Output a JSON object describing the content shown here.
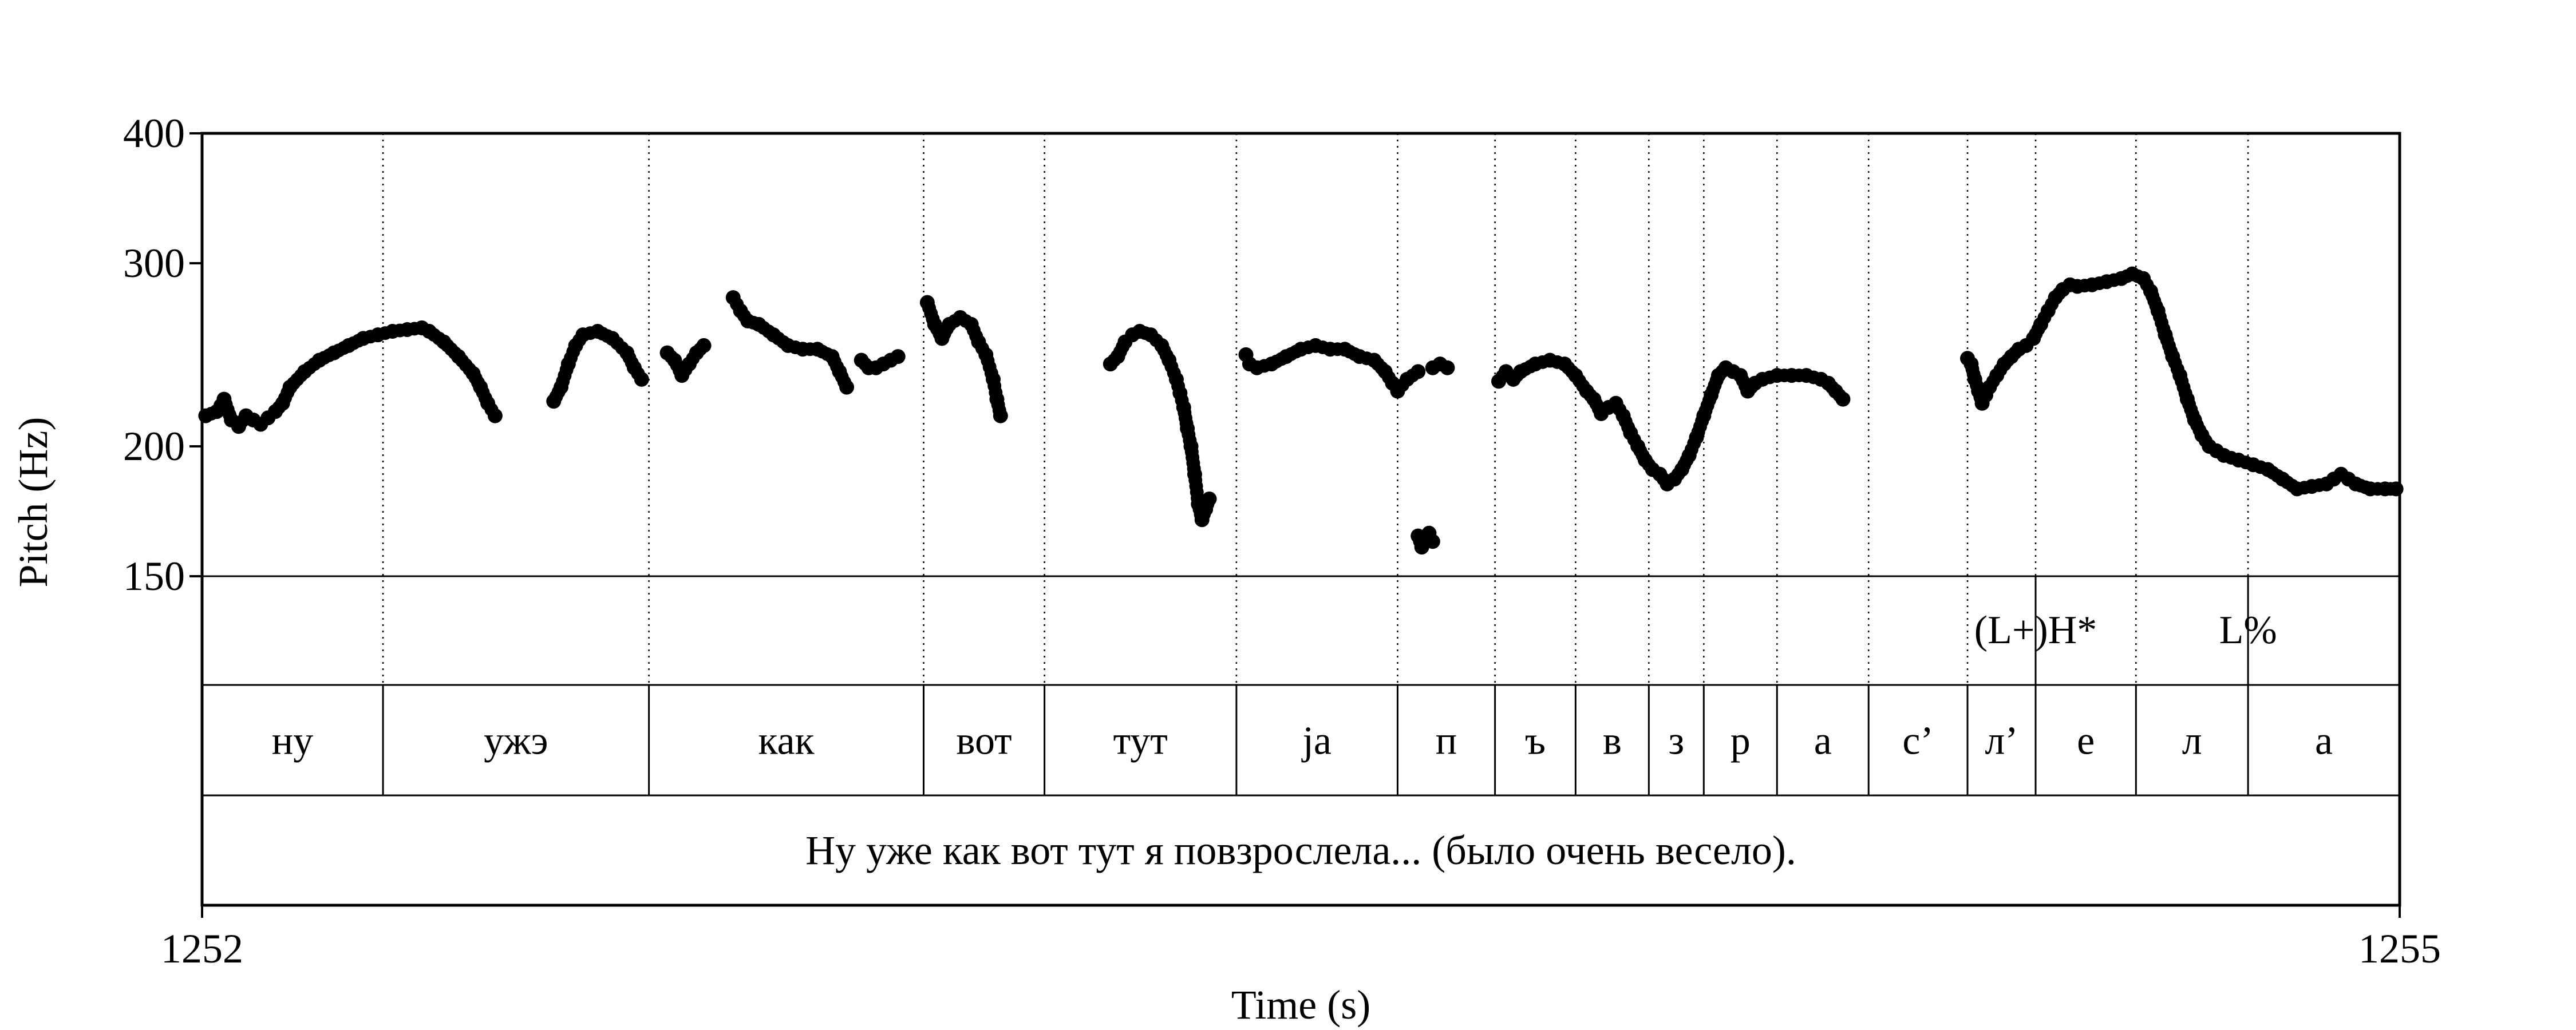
{
  "chart_data": {
    "type": "scatter",
    "title": "",
    "xlabel": "Time (s)",
    "ylabel": "Pitch (Hz)",
    "xlim": [
      1252,
      1255
    ],
    "ylim": [
      150,
      400
    ],
    "yscale": "log",
    "x_ticks": [
      {
        "value": 1252,
        "label": "1252"
      },
      {
        "value": 1255,
        "label": "1255"
      }
    ],
    "y_ticks": [
      {
        "value": 400,
        "label": "400"
      },
      {
        "value": 300,
        "label": "300"
      },
      {
        "value": 200,
        "label": "200"
      },
      {
        "value": 150,
        "label": "150"
      }
    ],
    "grid": false,
    "boundaries": [
      1252.247,
      1252.61,
      1252.985,
      1253.15,
      1253.412,
      1253.632,
      1253.765,
      1253.875,
      1253.975,
      1254.05,
      1254.15,
      1254.275,
      1254.41,
      1254.503,
      1254.64,
      1254.793
    ],
    "tones": [
      {
        "label": "(L+)H*",
        "time": 1254.503
      },
      {
        "label": "L%",
        "time": 1254.793
      }
    ],
    "segments": [
      {
        "label": "ну",
        "start": 1252.0,
        "end": 1252.247
      },
      {
        "label": "ужэ",
        "start": 1252.247,
        "end": 1252.61
      },
      {
        "label": "как",
        "start": 1252.61,
        "end": 1252.985
      },
      {
        "label": "вот",
        "start": 1252.985,
        "end": 1253.15
      },
      {
        "label": "тут",
        "start": 1253.15,
        "end": 1253.412
      },
      {
        "label": "ja",
        "start": 1253.412,
        "end": 1253.632
      },
      {
        "label": "п",
        "start": 1253.632,
        "end": 1253.765
      },
      {
        "label": "ъ",
        "start": 1253.765,
        "end": 1253.875
      },
      {
        "label": "в",
        "start": 1253.875,
        "end": 1253.975
      },
      {
        "label": "з",
        "start": 1253.975,
        "end": 1254.05
      },
      {
        "label": "р",
        "start": 1254.05,
        "end": 1254.15
      },
      {
        "label": "а",
        "start": 1254.15,
        "end": 1254.275
      },
      {
        "label": "с’",
        "start": 1254.275,
        "end": 1254.41
      },
      {
        "label": "л’",
        "start": 1254.41,
        "end": 1254.503
      },
      {
        "label": "е",
        "start": 1254.503,
        "end": 1254.64
      },
      {
        "label": "л",
        "start": 1254.64,
        "end": 1254.793
      },
      {
        "label": "а",
        "start": 1254.793,
        "end": 1255.0
      }
    ],
    "sentence": "Ну уже как вот тут я повзрослела... (было очень весело).",
    "pitch_series": [
      [
        [
          1252.005,
          214
        ],
        [
          1252.02,
          216
        ],
        [
          1252.03,
          222
        ],
        [
          1252.04,
          212
        ],
        [
          1252.05,
          209
        ],
        [
          1252.06,
          214
        ],
        [
          1252.07,
          212
        ],
        [
          1252.08,
          210
        ],
        [
          1252.09,
          213
        ],
        [
          1252.1,
          216
        ],
        [
          1252.11,
          220
        ],
        [
          1252.12,
          228
        ],
        [
          1252.14,
          236
        ],
        [
          1252.16,
          242
        ],
        [
          1252.18,
          246
        ],
        [
          1252.2,
          250
        ],
        [
          1252.22,
          254
        ],
        [
          1252.24,
          256
        ],
        [
          1252.26,
          258
        ],
        [
          1252.28,
          259
        ],
        [
          1252.3,
          260
        ],
        [
          1252.31,
          258
        ],
        [
          1252.33,
          252
        ],
        [
          1252.35,
          244
        ],
        [
          1252.37,
          235
        ],
        [
          1252.38,
          228
        ],
        [
          1252.39,
          220
        ],
        [
          1252.4,
          214
        ]
      ],
      [
        [
          1252.48,
          221
        ],
        [
          1252.49,
          228
        ],
        [
          1252.5,
          240
        ],
        [
          1252.51,
          250
        ],
        [
          1252.52,
          256
        ],
        [
          1252.54,
          258
        ],
        [
          1252.56,
          254
        ],
        [
          1252.58,
          246
        ],
        [
          1252.59,
          238
        ],
        [
          1252.6,
          232
        ]
      ],
      [
        [
          1252.635,
          246
        ],
        [
          1252.645,
          242
        ],
        [
          1252.655,
          234
        ],
        [
          1252.665,
          240
        ],
        [
          1252.675,
          246
        ],
        [
          1252.685,
          250
        ]
      ],
      [
        [
          1252.725,
          278
        ],
        [
          1252.735,
          270
        ],
        [
          1252.745,
          264
        ],
        [
          1252.76,
          262
        ],
        [
          1252.78,
          256
        ],
        [
          1252.8,
          250
        ],
        [
          1252.82,
          248
        ],
        [
          1252.84,
          248
        ],
        [
          1252.86,
          244
        ],
        [
          1252.87,
          236
        ],
        [
          1252.88,
          228
        ]
      ],
      [
        [
          1252.9,
          242
        ],
        [
          1252.91,
          238
        ],
        [
          1252.92,
          238
        ],
        [
          1252.93,
          240
        ],
        [
          1252.94,
          242
        ],
        [
          1252.95,
          244
        ]
      ],
      [
        [
          1252.99,
          275
        ],
        [
          1253.0,
          262
        ],
        [
          1253.01,
          254
        ],
        [
          1253.02,
          262
        ],
        [
          1253.035,
          266
        ],
        [
          1253.05,
          262
        ],
        [
          1253.06,
          252
        ],
        [
          1253.07,
          245
        ],
        [
          1253.08,
          232
        ],
        [
          1253.085,
          222
        ],
        [
          1253.09,
          214
        ]
      ],
      [
        [
          1253.24,
          240
        ],
        [
          1253.25,
          244
        ],
        [
          1253.26,
          252
        ],
        [
          1253.27,
          256
        ],
        [
          1253.28,
          258
        ],
        [
          1253.295,
          256
        ],
        [
          1253.31,
          250
        ],
        [
          1253.32,
          242
        ],
        [
          1253.33,
          232
        ],
        [
          1253.335,
          225
        ],
        [
          1253.34,
          218
        ],
        [
          1253.345,
          208
        ],
        [
          1253.35,
          200
        ],
        [
          1253.355,
          188
        ],
        [
          1253.36,
          176
        ],
        [
          1253.365,
          170
        ],
        [
          1253.37,
          174
        ],
        [
          1253.375,
          178
        ]
      ],
      [
        [
          1253.425,
          245
        ],
        [
          1253.43,
          240
        ],
        [
          1253.44,
          238
        ],
        [
          1253.46,
          240
        ],
        [
          1253.48,
          244
        ],
        [
          1253.5,
          248
        ],
        [
          1253.52,
          250
        ],
        [
          1253.54,
          248
        ],
        [
          1253.56,
          248
        ],
        [
          1253.58,
          244
        ],
        [
          1253.6,
          242
        ],
        [
          1253.615,
          236
        ],
        [
          1253.625,
          230
        ],
        [
          1253.632,
          226
        ],
        [
          1253.645,
          232
        ],
        [
          1253.66,
          236
        ]
      ],
      [
        [
          1253.66,
          164
        ],
        [
          1253.665,
          160
        ],
        [
          1253.67,
          162
        ],
        [
          1253.675,
          165
        ],
        [
          1253.68,
          162
        ]
      ],
      [
        [
          1253.68,
          238
        ],
        [
          1253.69,
          240
        ],
        [
          1253.7,
          238
        ]
      ],
      [
        [
          1253.77,
          231
        ],
        [
          1253.78,
          236
        ],
        [
          1253.79,
          232
        ],
        [
          1253.8,
          236
        ],
        [
          1253.82,
          240
        ],
        [
          1253.84,
          242
        ],
        [
          1253.86,
          240
        ],
        [
          1253.875,
          234
        ],
        [
          1253.89,
          226
        ],
        [
          1253.9,
          222
        ],
        [
          1253.91,
          215
        ],
        [
          1253.92,
          218
        ],
        [
          1253.93,
          220
        ],
        [
          1253.94,
          214
        ],
        [
          1253.95,
          206
        ],
        [
          1253.96,
          200
        ],
        [
          1253.97,
          194
        ],
        [
          1253.98,
          190
        ],
        [
          1253.99,
          188
        ],
        [
          1254.0,
          184
        ],
        [
          1254.01,
          186
        ],
        [
          1254.02,
          190
        ],
        [
          1254.03,
          196
        ],
        [
          1254.04,
          204
        ],
        [
          1254.05,
          214
        ],
        [
          1254.06,
          224
        ],
        [
          1254.07,
          234
        ],
        [
          1254.08,
          238
        ],
        [
          1254.09,
          236
        ],
        [
          1254.1,
          234
        ],
        [
          1254.11,
          226
        ],
        [
          1254.12,
          230
        ],
        [
          1254.13,
          232
        ],
        [
          1254.15,
          234
        ],
        [
          1254.17,
          234
        ],
        [
          1254.19,
          234
        ],
        [
          1254.21,
          232
        ],
        [
          1254.22,
          230
        ],
        [
          1254.23,
          226
        ],
        [
          1254.24,
          222
        ]
      ],
      [
        [
          1254.41,
          243
        ],
        [
          1254.415,
          240
        ],
        [
          1254.42,
          232
        ],
        [
          1254.425,
          226
        ],
        [
          1254.43,
          220
        ],
        [
          1254.435,
          224
        ],
        [
          1254.44,
          228
        ],
        [
          1254.45,
          234
        ],
        [
          1254.46,
          240
        ],
        [
          1254.47,
          244
        ],
        [
          1254.48,
          248
        ],
        [
          1254.49,
          250
        ],
        [
          1254.5,
          254
        ],
        [
          1254.51,
          262
        ],
        [
          1254.52,
          270
        ],
        [
          1254.53,
          278
        ],
        [
          1254.54,
          283
        ],
        [
          1254.55,
          286
        ],
        [
          1254.56,
          285
        ],
        [
          1254.58,
          286
        ],
        [
          1254.6,
          288
        ],
        [
          1254.62,
          290
        ],
        [
          1254.635,
          293
        ],
        [
          1254.65,
          290
        ],
        [
          1254.66,
          282
        ],
        [
          1254.67,
          270
        ],
        [
          1254.68,
          256
        ],
        [
          1254.69,
          244
        ],
        [
          1254.7,
          234
        ],
        [
          1254.71,
          222
        ],
        [
          1254.72,
          212
        ],
        [
          1254.73,
          205
        ],
        [
          1254.74,
          200
        ],
        [
          1254.75,
          198
        ],
        [
          1254.76,
          196
        ],
        [
          1254.78,
          194
        ],
        [
          1254.8,
          192
        ],
        [
          1254.82,
          190
        ],
        [
          1254.84,
          186
        ],
        [
          1254.86,
          182
        ],
        [
          1254.88,
          183
        ],
        [
          1254.9,
          184
        ],
        [
          1254.91,
          186
        ],
        [
          1254.92,
          188
        ],
        [
          1254.93,
          186
        ],
        [
          1254.94,
          184
        ],
        [
          1254.96,
          182
        ],
        [
          1254.98,
          182
        ],
        [
          1254.995,
          182
        ]
      ]
    ]
  }
}
